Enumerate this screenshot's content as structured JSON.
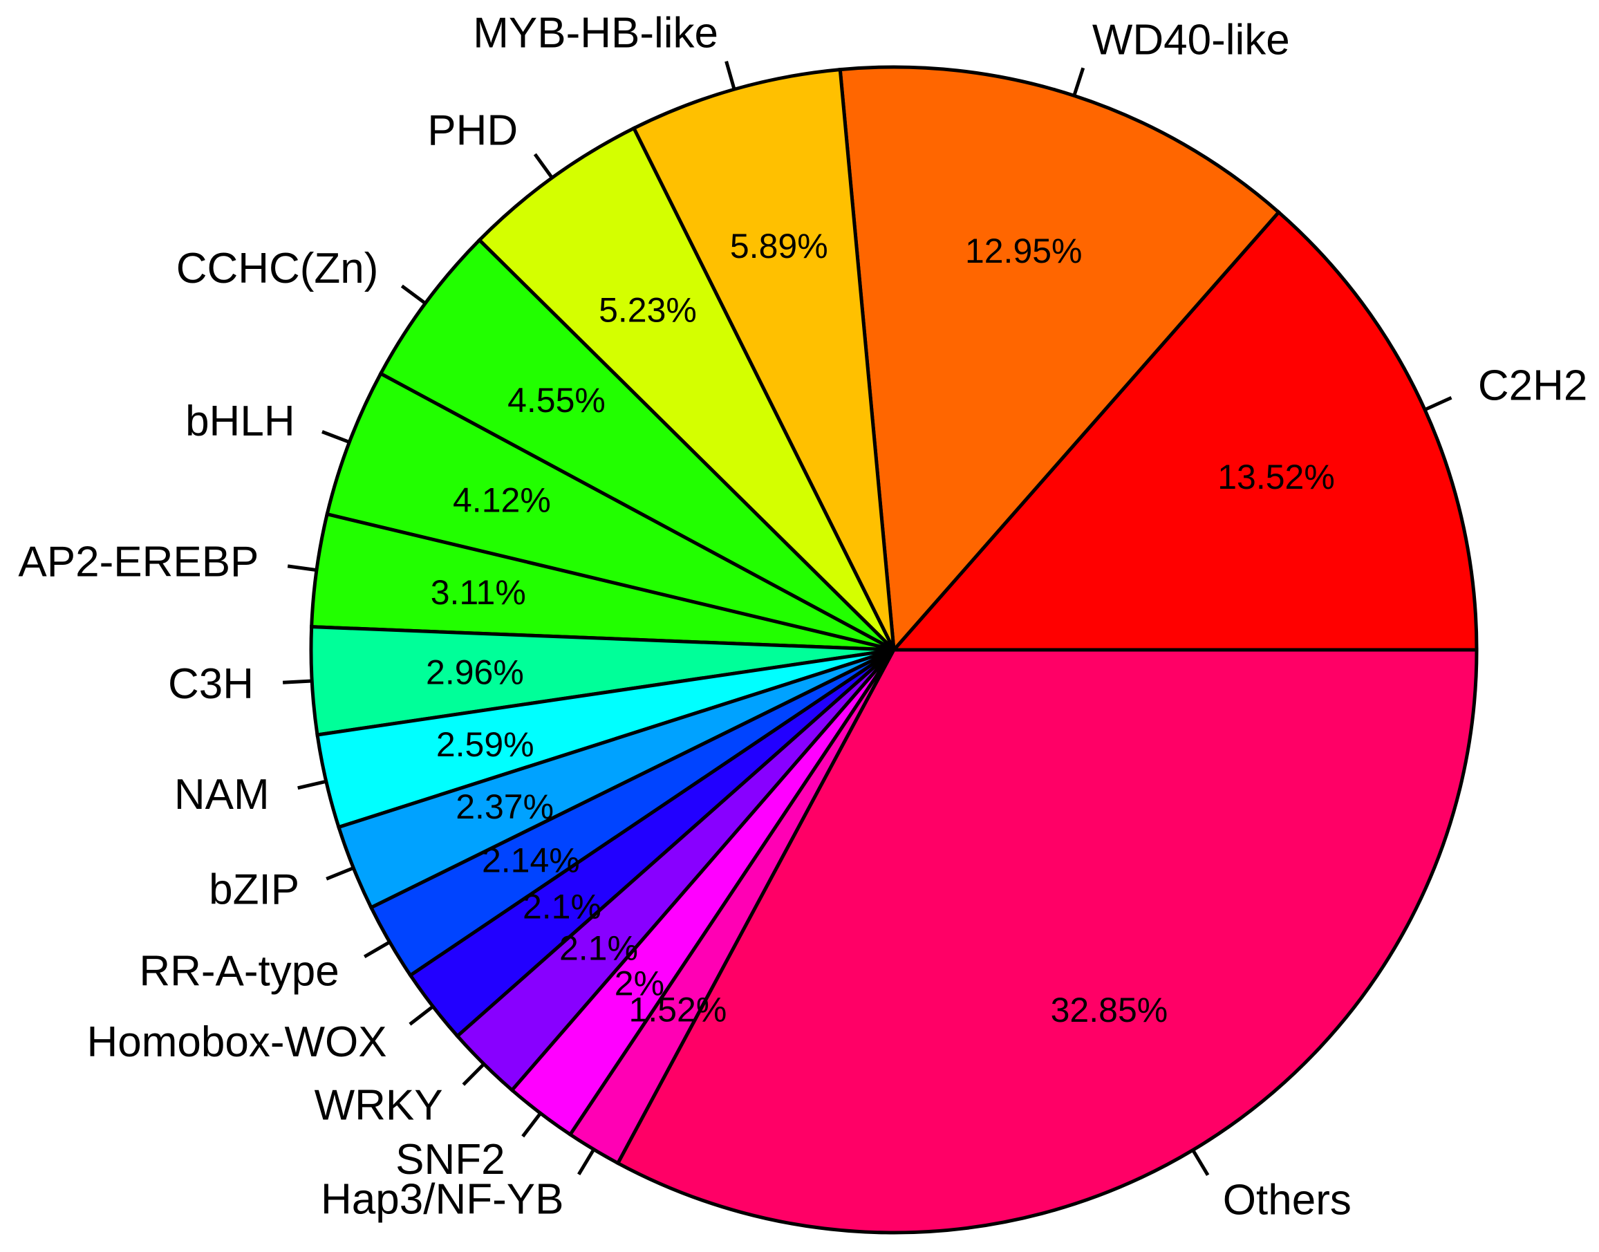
{
  "chart_data": {
    "type": "pie",
    "title": "",
    "start_angle_deg": 0,
    "direction": "counterclockwise",
    "slices": [
      {
        "label": "C2H2",
        "value": 13.52,
        "value_label": "13.52%",
        "color": "#FF0000"
      },
      {
        "label": "WD40-like",
        "value": 12.95,
        "value_label": "12.95%",
        "color": "#FF6600"
      },
      {
        "label": "MYB-HB-like",
        "value": 5.89,
        "value_label": "5.89%",
        "color": "#FFC000"
      },
      {
        "label": "PHD",
        "value": 5.23,
        "value_label": "5.23%",
        "color": "#D4FF00"
      },
      {
        "label": "CCHC(Zn)",
        "value": 4.55,
        "value_label": "4.55%",
        "color": "#22FF00"
      },
      {
        "label": "bHLH",
        "value": 4.12,
        "value_label": "4.12%",
        "color": "#22FF00"
      },
      {
        "label": "AP2-EREBP",
        "value": 3.11,
        "value_label": "3.11%",
        "color": "#22FF00"
      },
      {
        "label": "C3H",
        "value": 2.96,
        "value_label": "2.96%",
        "color": "#00FF99"
      },
      {
        "label": "NAM",
        "value": 2.59,
        "value_label": "2.59%",
        "color": "#00FFFF"
      },
      {
        "label": "bZIP",
        "value": 2.37,
        "value_label": "2.37%",
        "color": "#00A2FF"
      },
      {
        "label": "RR-A-type",
        "value": 2.14,
        "value_label": "2.14%",
        "color": "#0044FF"
      },
      {
        "label": "Homobox-WOX",
        "value": 2.1,
        "value_label": "2.1%",
        "color": "#2200FF"
      },
      {
        "label": "WRKY",
        "value": 2.1,
        "value_label": "2.1%",
        "color": "#8800FF"
      },
      {
        "label": "SNF2",
        "value": 2.0,
        "value_label": "2%",
        "color": "#FF00FF"
      },
      {
        "label": "Hap3/NF-YB",
        "value": 1.52,
        "value_label": "1.52%",
        "color": "#FF00B4"
      },
      {
        "label": "Others",
        "value": 32.85,
        "value_label": "32.85%",
        "color": "#FF0066"
      }
    ]
  }
}
